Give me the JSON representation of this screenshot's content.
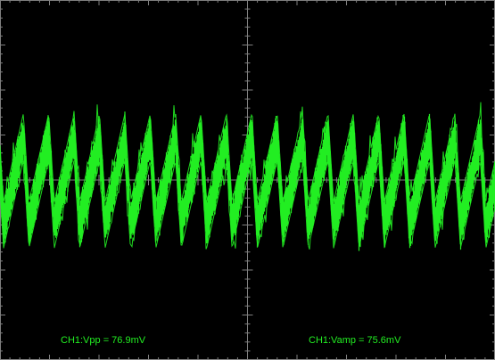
{
  "measurements": {
    "vpp": "CH1:Vpp = 76.9mV",
    "vamp": "CH1:Vamp = 75.6mV"
  },
  "colors": {
    "background": "#000000",
    "grid": "#7f7f7f",
    "trace": "#22ee22",
    "readout": "#22ee22"
  },
  "chart_data": {
    "type": "line",
    "title": "",
    "xlabel": "",
    "ylabel": "",
    "grid": true,
    "divisions": {
      "x": 10,
      "y": 8
    },
    "series": [
      {
        "channel": "CH1",
        "cycles_on_screen": 19.5,
        "vpp_mV": 76.9,
        "vamp_mV": 75.6,
        "waveform": "sawtooth-like with noise"
      }
    ]
  }
}
